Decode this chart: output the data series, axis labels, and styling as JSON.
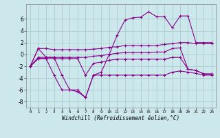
{
  "background_color": "#cce8ec",
  "grid_color": "#aacccc",
  "line_color": "#880088",
  "hours": [
    0,
    1,
    2,
    3,
    4,
    5,
    6,
    7,
    8,
    9,
    10,
    11,
    12,
    13,
    14,
    15,
    16,
    17,
    18,
    19,
    20,
    21,
    22,
    23
  ],
  "series_top": [
    -2.0,
    1.0,
    1.0,
    0.8,
    0.8,
    0.8,
    0.8,
    0.8,
    0.9,
    1.0,
    1.2,
    1.3,
    1.5,
    1.5,
    1.5,
    1.5,
    1.5,
    1.7,
    1.8,
    2.0,
    2.0,
    1.8,
    1.8,
    1.8
  ],
  "series_mid1": [
    -2.0,
    -0.5,
    -0.5,
    -0.5,
    -0.5,
    -0.5,
    -0.5,
    -0.5,
    -0.3,
    -0.2,
    0.0,
    0.2,
    0.3,
    0.3,
    0.3,
    0.3,
    0.4,
    0.4,
    1.0,
    1.1,
    -2.5,
    -2.7,
    -3.3,
    -3.3
  ],
  "series_mid2": [
    -2.0,
    -0.7,
    -0.7,
    -0.7,
    -0.7,
    -0.7,
    -0.7,
    -3.5,
    -1.5,
    -1.3,
    -1.0,
    -0.8,
    -0.8,
    -0.8,
    -0.8,
    -0.8,
    -0.8,
    -0.8,
    -0.5,
    -0.5,
    -2.5,
    -2.7,
    -3.3,
    -3.3
  ],
  "series_bot": [
    -2.0,
    -0.7,
    -0.7,
    -3.5,
    -6.0,
    -6.0,
    -6.3,
    -7.3,
    -3.5,
    -3.5,
    -3.5,
    -3.5,
    -3.5,
    -3.5,
    -3.5,
    -3.5,
    -3.5,
    -3.5,
    -3.0,
    -2.8,
    -3.0,
    -3.2,
    -3.5,
    -3.5
  ],
  "series_main": [
    -2.0,
    1.0,
    -0.5,
    -0.5,
    -3.5,
    -6.0,
    -6.0,
    -7.3,
    -3.5,
    -3.0,
    0.0,
    3.2,
    5.8,
    6.2,
    6.3,
    7.2,
    6.4,
    6.4,
    4.5,
    6.5,
    6.5,
    2.0,
    2.0,
    2.0
  ],
  "xlabel": "Windchill (Refroidissement éolien,°C)",
  "ylim": [
    -9.0,
    8.5
  ],
  "yticks": [
    -8,
    -6,
    -4,
    -2,
    0,
    2,
    4,
    6
  ],
  "xlim": [
    -0.5,
    23.5
  ]
}
